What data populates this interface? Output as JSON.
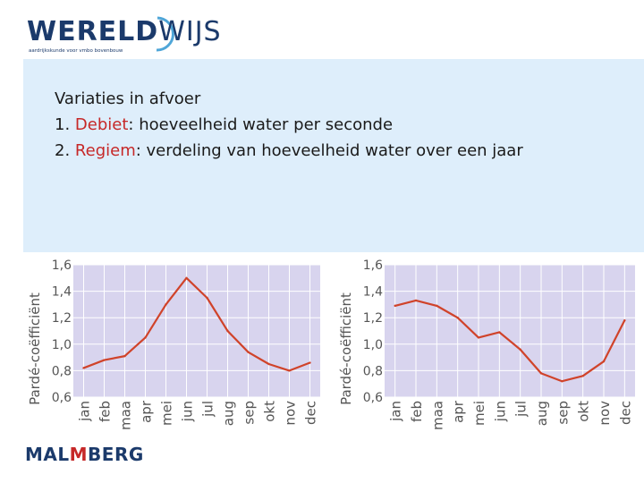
{
  "header": {
    "logo_text_bold": "WERELD",
    "logo_text_light": "WIJS",
    "logo_tagline": "aardrijkskunde voor vmbo bovenbouw"
  },
  "slide": {
    "title": "Variaties in afvoer",
    "items": [
      {
        "number": "1.",
        "term": "Debiet",
        "text": ": hoeveelheid water per seconde"
      },
      {
        "number": "2.",
        "term": "Regiem",
        "text": ": verdeling van hoeveelheid water over een jaar"
      }
    ]
  },
  "footer": {
    "logo_text_left": "MAL",
    "logo_text_mark": "M",
    "logo_text_right": "BERG"
  },
  "colors": {
    "accent": "#c62828",
    "brand": "#1b3a6b",
    "panel": "#deeefb",
    "plot_bg": "#d8d4ee",
    "line": "#d0432a"
  },
  "chart_data": [
    {
      "type": "line",
      "title": "",
      "ylabel": "Pardé-coëfficiënt",
      "xlabel": "",
      "ylim": [
        0.6,
        1.6
      ],
      "yticks": [
        "0,6",
        "0,8",
        "1,0",
        "1,2",
        "1,4",
        "1,6"
      ],
      "grid": true,
      "categories": [
        "jan",
        "feb",
        "maa",
        "apr",
        "mei",
        "jun",
        "jul",
        "aug",
        "sep",
        "okt",
        "nov",
        "dec"
      ],
      "series": [
        {
          "values": [
            0.82,
            0.88,
            0.91,
            1.05,
            1.3,
            1.5,
            1.35,
            1.1,
            0.94,
            0.85,
            0.8,
            0.86
          ]
        }
      ]
    },
    {
      "type": "line",
      "title": "",
      "ylabel": "Pardé-coëfficiënt",
      "xlabel": "",
      "ylim": [
        0.6,
        1.6
      ],
      "yticks": [
        "0,6",
        "0,8",
        "1,0",
        "1,2",
        "1,4",
        "1,6"
      ],
      "grid": true,
      "categories": [
        "jan",
        "feb",
        "maa",
        "apr",
        "mei",
        "jun",
        "jul",
        "aug",
        "sep",
        "okt",
        "nov",
        "dec"
      ],
      "series": [
        {
          "values": [
            1.29,
            1.33,
            1.29,
            1.2,
            1.05,
            1.09,
            0.96,
            0.78,
            0.72,
            0.76,
            0.87,
            1.18
          ]
        }
      ]
    }
  ]
}
